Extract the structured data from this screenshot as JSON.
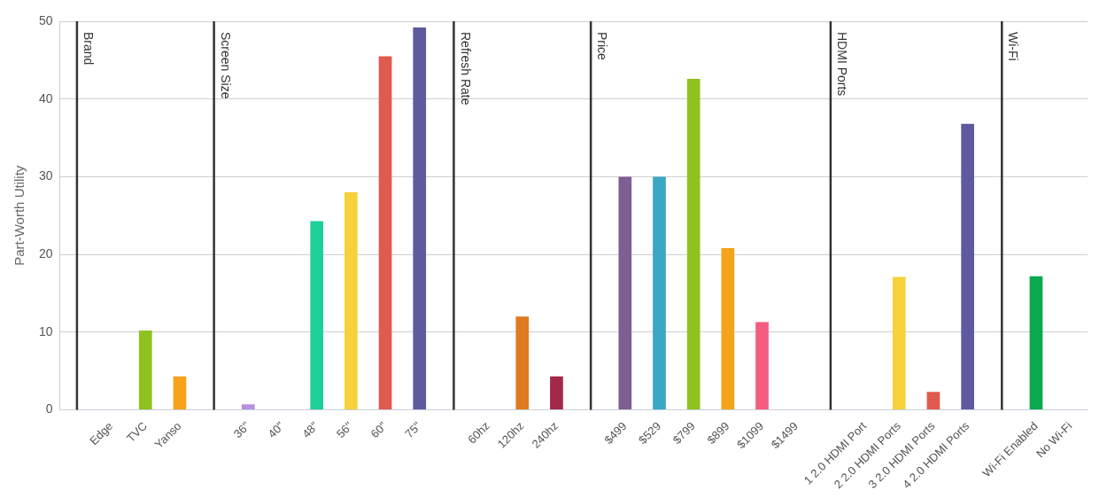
{
  "chart_data": {
    "type": "bar",
    "y_label": "Part-Worth Utility",
    "groups": [
      "Brand",
      "Screen Size",
      "Refresh Rate",
      "Price",
      "HDMI Ports",
      "Wi-Fi"
    ],
    "categories": [
      null,
      "Edge",
      "TVC",
      "Yanso",
      null,
      "36\"",
      "40\"",
      "48\"",
      "56\"",
      "60\"",
      "75\"",
      null,
      "60hz",
      "120hz",
      "240hz",
      null,
      "$499",
      "$529",
      "$799",
      "$899",
      "$1099",
      "$1499",
      null,
      "1 2.0 HDMI Port",
      "2 2.0 HDMI Ports",
      "3 2.0 HDMI Ports",
      "4 2.0 HDMI Ports",
      null,
      "Wi-Fi Enabled",
      "No Wi-Fi"
    ],
    "values": [
      null,
      0,
      10.2,
      4.3,
      null,
      0.7,
      0,
      24.3,
      28,
      45.5,
      49.2,
      null,
      0,
      12,
      4.3,
      null,
      30,
      30,
      42.6,
      20.8,
      11.3,
      0,
      null,
      0,
      17.1,
      2.3,
      36.8,
      null,
      17.2,
      0
    ],
    "colors": [
      null,
      "#3aa7c3",
      "#8dc21f",
      "#f7a21b",
      null,
      "#b98fe0",
      "#3aa7c3",
      "#1fcf9a",
      "#f6d13a",
      "#e05a4f",
      "#5e5aa0",
      null,
      "#3aa7c3",
      "#e07a1f",
      "#a3284a",
      null,
      "#7e5e93",
      "#3aa7c3",
      "#8dc21f",
      "#f7a21b",
      "#f45d7f",
      "#b98fe0",
      null,
      "#3aa7c3",
      "#f6d13a",
      "#e05a4f",
      "#5e5aa0",
      null,
      "#0aa84f",
      "#3aa7c3"
    ],
    "ylim": [
      0,
      50
    ],
    "yticks": [
      0,
      10,
      20,
      30,
      40,
      50
    ],
    "grid": true
  }
}
